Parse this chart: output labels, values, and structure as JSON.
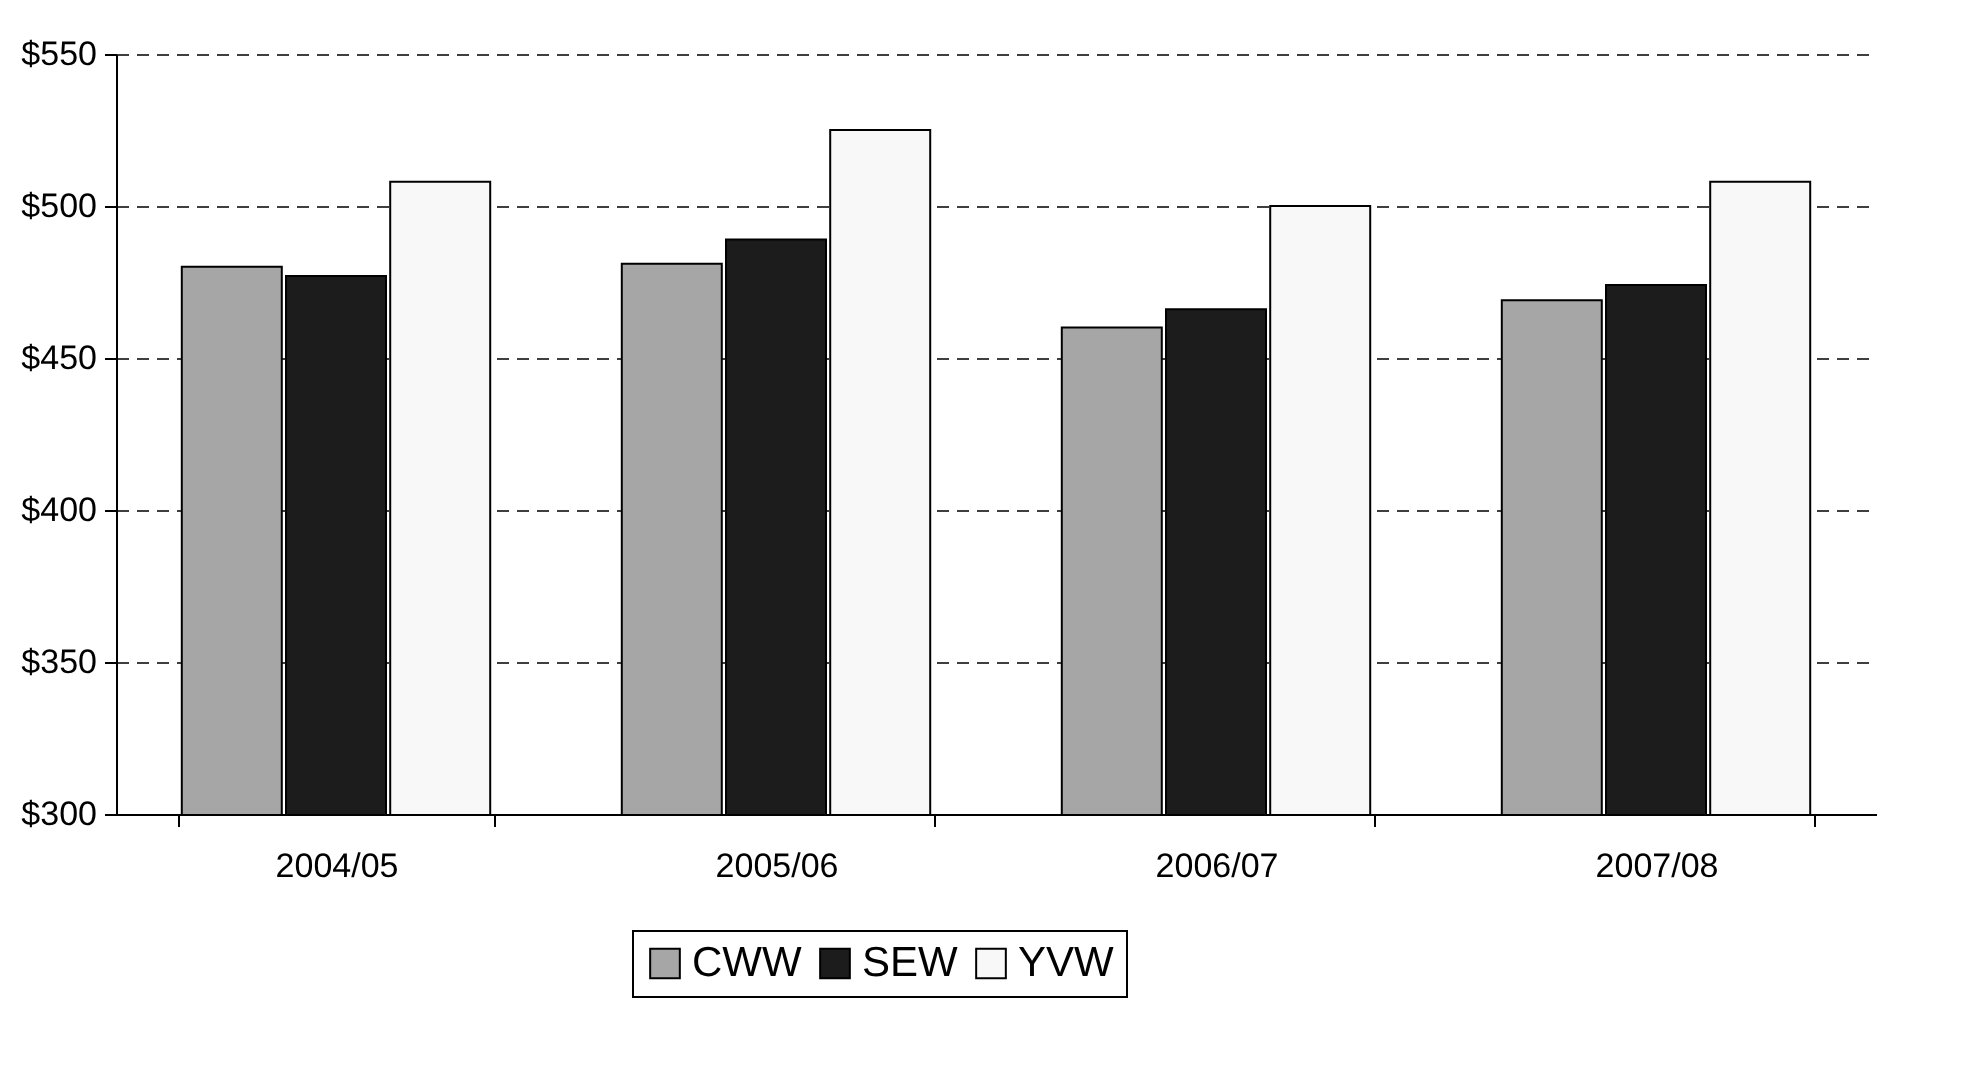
{
  "chart_data": {
    "type": "bar",
    "categories": [
      "2004/05",
      "2005/06",
      "2006/07",
      "2007/08"
    ],
    "series": [
      {
        "name": "CWW",
        "color": "#a6a6a6",
        "values": [
          480,
          481,
          460,
          469
        ]
      },
      {
        "name": "SEW",
        "color": "#1c1c1c",
        "values": [
          477,
          489,
          466,
          474
        ]
      },
      {
        "name": "YVW",
        "color": "#f8f8f8",
        "values": [
          508,
          525,
          500,
          508
        ]
      }
    ],
    "ylim": [
      300,
      550
    ],
    "yticks": [
      {
        "value": 300,
        "label": "$300"
      },
      {
        "value": 350,
        "label": "$350"
      },
      {
        "value": 400,
        "label": "$400"
      },
      {
        "value": 450,
        "label": "$450"
      },
      {
        "value": 500,
        "label": "$500"
      },
      {
        "value": 550,
        "label": "$550"
      }
    ],
    "grid": "y",
    "line_style": "dashed",
    "legend": "bottom"
  }
}
